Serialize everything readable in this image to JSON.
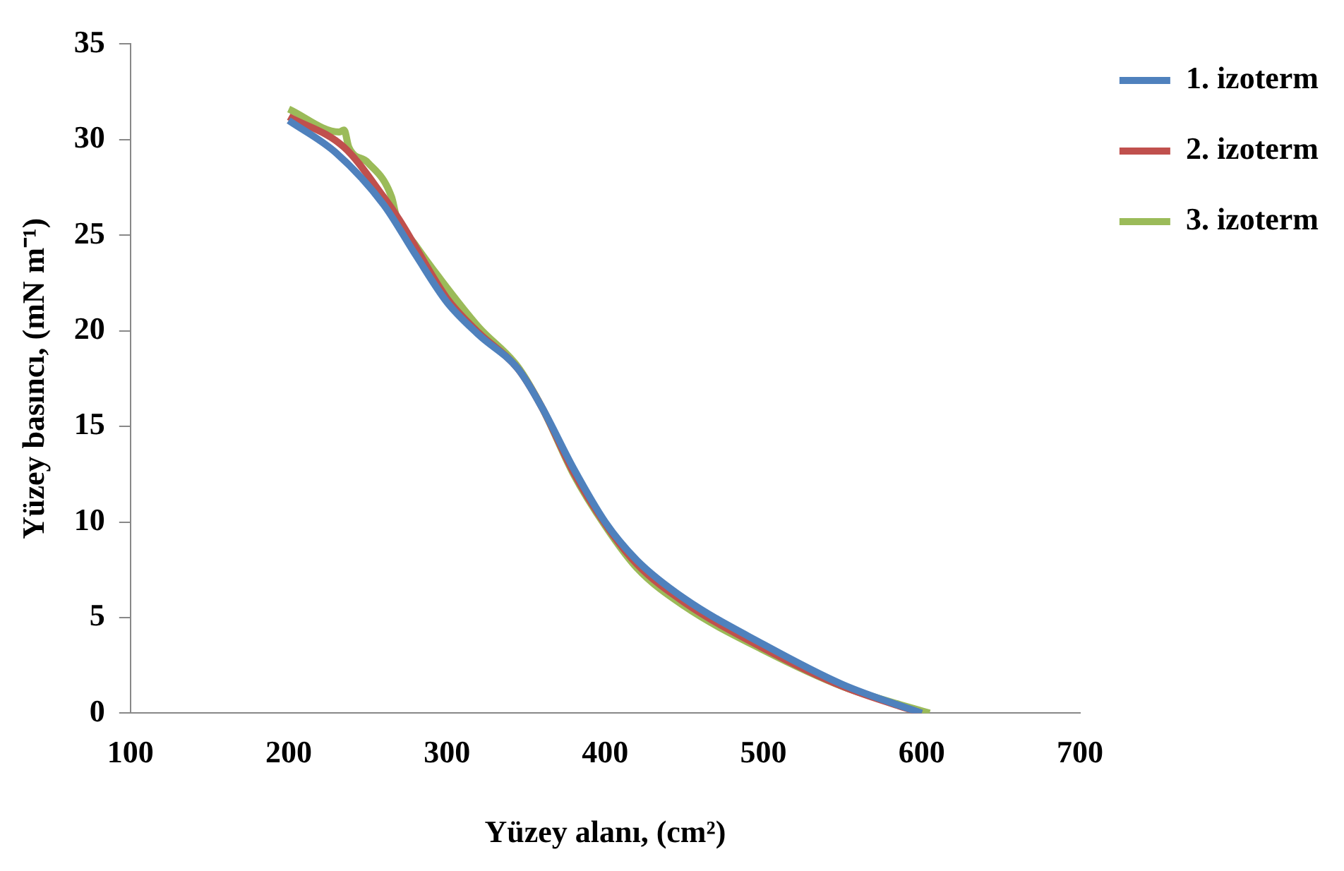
{
  "chart_data": {
    "type": "line",
    "xlabel": "Yüzey alanı, (cm²)",
    "ylabel": "Yüzey basıncı, (mN m⁻¹)",
    "xlim": [
      100,
      700
    ],
    "xticks": [
      100,
      200,
      300,
      400,
      500,
      600,
      700
    ],
    "ylim": [
      0,
      35
    ],
    "yticks": [
      0,
      5,
      10,
      15,
      20,
      25,
      30,
      35
    ],
    "grid": false,
    "legend": "right",
    "marker": "none",
    "line_style": "solid",
    "series": [
      {
        "name": "1. izoterm",
        "color": "#4f81bd",
        "x": [
          200,
          230,
          260,
          280,
          300,
          320,
          345,
          360,
          380,
          400,
          420,
          450,
          500,
          550,
          600
        ],
        "values": [
          31,
          29.3,
          26.6,
          24,
          21.5,
          19.8,
          18,
          16,
          12.8,
          10,
          8,
          6,
          3.6,
          1.5,
          0
        ]
      },
      {
        "name": "2. izoterm",
        "color": "#c0504d",
        "x": [
          200,
          235,
          260,
          270,
          300,
          320,
          345,
          360,
          380,
          400,
          420,
          450,
          500,
          550,
          600
        ],
        "values": [
          31.2,
          29.6,
          27,
          25.8,
          21.7,
          19.9,
          18,
          16,
          12.6,
          9.9,
          7.8,
          5.8,
          3.4,
          1.4,
          0
        ]
      },
      {
        "name": "3. izoterm",
        "color": "#9bbb59",
        "x": [
          200,
          232,
          235,
          238,
          250,
          265,
          268,
          280,
          295,
          320,
          345,
          360,
          380,
          400,
          420,
          450,
          500,
          550,
          605
        ],
        "values": [
          31.6,
          30.4,
          30.5,
          29.6,
          28.8,
          27,
          26,
          24.5,
          22.8,
          20.2,
          18.1,
          16,
          12.5,
          9.8,
          7.6,
          5.6,
          3.3,
          1.4,
          0
        ]
      }
    ]
  }
}
